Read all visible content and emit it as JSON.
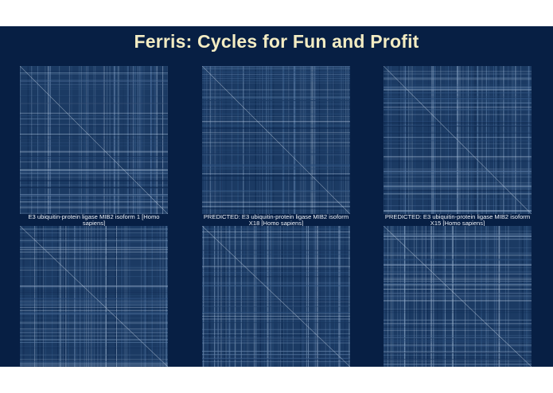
{
  "page": {
    "title": "Ferris: Cycles for Fun and Profit",
    "background": "#071f44",
    "title_color": "#f3ecc3"
  },
  "panels": [
    {
      "caption": "E3 ubiquitin-protein ligase MIB2 isoform 1 [Homo sapiens]"
    },
    {
      "caption": "PREDICTED: E3 ubiquitin-protein ligase MIB2 isoform X18 [Homo sapiens]"
    },
    {
      "caption": "PREDICTED: E3 ubiquitin-protein ligase MIB2 isoform X15 [Homo sapiens]"
    },
    {
      "caption": ""
    },
    {
      "caption": ""
    },
    {
      "caption": ""
    }
  ]
}
